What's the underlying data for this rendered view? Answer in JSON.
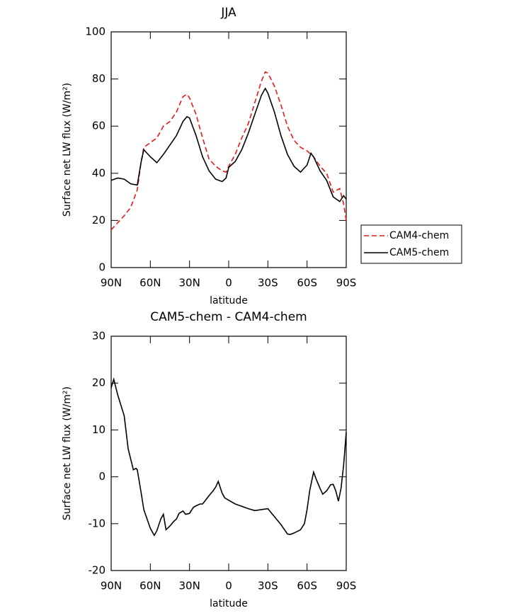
{
  "chart_data": [
    {
      "type": "line",
      "title": "JJA",
      "xlabel": "latitude",
      "ylabel": "Surface net LW flux (W/m²)",
      "x": [
        90,
        85,
        80,
        75,
        70,
        67,
        65,
        60,
        55,
        50,
        45,
        40,
        35,
        32,
        30,
        25,
        20,
        15,
        10,
        5,
        2,
        0,
        -5,
        -10,
        -15,
        -20,
        -25,
        -28,
        -30,
        -35,
        -40,
        -45,
        -50,
        -55,
        -60,
        -63,
        -65,
        -70,
        -75,
        -80,
        -85,
        -88,
        -90
      ],
      "series": [
        {
          "name": "CAM4-chem",
          "color": "#e41a1c",
          "line_style": "dashed",
          "values": [
            16,
            19,
            22,
            25.5,
            33,
            45,
            51,
            53,
            55,
            60,
            62,
            66,
            72.5,
            73.5,
            72,
            65,
            55,
            46,
            43,
            41,
            40.5,
            43,
            48,
            55,
            61,
            70,
            79,
            83,
            82.5,
            77,
            69,
            60,
            54,
            51,
            49.5,
            48,
            47,
            43,
            40,
            32,
            33.5,
            27,
            20
          ]
        },
        {
          "name": "CAM5-chem",
          "color": "#000000",
          "line_style": "solid",
          "values": [
            37,
            38,
            37.5,
            35.5,
            35,
            45,
            50,
            47,
            44.5,
            48,
            52,
            56,
            62,
            64,
            63.5,
            56,
            47,
            41,
            37.5,
            36.5,
            38,
            42.5,
            45,
            50,
            57,
            65,
            73,
            76,
            74,
            66,
            56,
            48,
            43,
            40.5,
            43.5,
            48.5,
            47,
            41,
            37,
            30,
            28,
            30.5,
            29
          ]
        }
      ],
      "xlim": [
        90,
        -90
      ],
      "xticks": [
        {
          "value": 90,
          "label": "90N"
        },
        {
          "value": 60,
          "label": "60N"
        },
        {
          "value": 30,
          "label": "30N"
        },
        0,
        {
          "value": -30,
          "label": "30S"
        },
        {
          "value": -60,
          "label": "60S"
        },
        {
          "value": -90,
          "label": "90S"
        }
      ],
      "ylim": [
        0,
        100
      ],
      "yticks": [
        0,
        20,
        40,
        60,
        80,
        100
      ],
      "legend": "right"
    },
    {
      "type": "line",
      "title": "CAM5-chem - CAM4-chem",
      "xlabel": "latitude",
      "ylabel": "Surface net LW flux (W/m²)",
      "x": [
        90,
        88,
        85,
        80,
        77,
        73,
        71,
        70,
        67,
        65,
        60,
        57,
        55,
        52,
        50,
        48,
        45,
        42,
        40,
        38,
        35,
        33,
        30,
        27,
        25,
        22,
        20,
        15,
        12,
        10,
        8,
        5,
        3,
        0,
        -5,
        -10,
        -15,
        -20,
        -25,
        -30,
        -35,
        -40,
        -45,
        -47,
        -50,
        -55,
        -58,
        -60,
        -62,
        -64,
        -65,
        -67,
        -70,
        -72,
        -75,
        -78,
        -80,
        -82,
        -84,
        -86,
        -88,
        -90
      ],
      "values": [
        19,
        20.8,
        17.5,
        13,
        6,
        1.5,
        1.8,
        1.5,
        -3.5,
        -7,
        -11,
        -12.5,
        -11.5,
        -9,
        -8,
        -11.3,
        -10.5,
        -9.5,
        -9,
        -7.8,
        -7.3,
        -8,
        -7.8,
        -6.5,
        -6.2,
        -5.8,
        -5.8,
        -4,
        -3,
        -2.2,
        -1,
        -3.5,
        -4.5,
        -5,
        -5.8,
        -6.3,
        -6.8,
        -7.2,
        -7,
        -6.8,
        -8.5,
        -10.2,
        -12.2,
        -12.3,
        -12,
        -11.3,
        -10,
        -7,
        -3,
        -0.3,
        1,
        -0.5,
        -2.5,
        -3.7,
        -3,
        -1.7,
        -1.6,
        -3,
        -5.2,
        -2.5,
        2.5,
        9.5
      ],
      "color": "#000000",
      "xlim": [
        90,
        -90
      ],
      "xticks": [
        {
          "value": 90,
          "label": "90N"
        },
        {
          "value": 60,
          "label": "60N"
        },
        {
          "value": 30,
          "label": "30N"
        },
        0,
        {
          "value": -30,
          "label": "30S"
        },
        {
          "value": -60,
          "label": "60S"
        },
        {
          "value": -90,
          "label": "90S"
        }
      ],
      "ylim": [
        -20,
        30
      ],
      "yticks": [
        -20,
        -10,
        0,
        10,
        20,
        30
      ]
    }
  ]
}
